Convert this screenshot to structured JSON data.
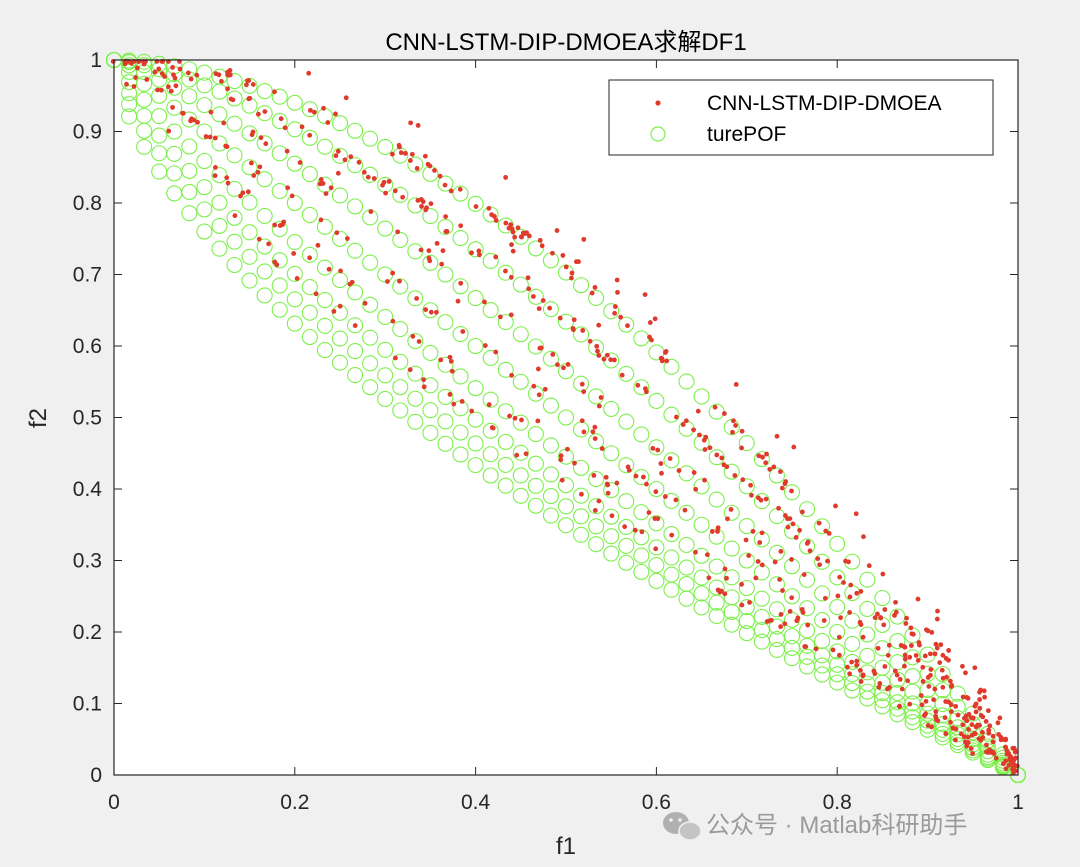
{
  "chart_data": {
    "type": "scatter",
    "title": "CNN-LSTM-DIP-DMOEA求解DF1",
    "xlabel": "f1",
    "ylabel": "f2",
    "xlim": [
      0,
      1
    ],
    "ylim": [
      0,
      1
    ],
    "xticks": [
      "0",
      "0.2",
      "0.4",
      "0.6",
      "0.8",
      "1"
    ],
    "yticks": [
      "0",
      "0.1",
      "0.2",
      "0.3",
      "0.4",
      "0.5",
      "0.6",
      "0.7",
      "0.8",
      "0.9",
      "1"
    ],
    "grid": false,
    "legend_position": "top-right",
    "series": [
      {
        "name": "CNN-LSTM-DIP-DMOEA",
        "marker": "dot",
        "color": "#e03a2c",
        "distribution": "solutions clustered on the true Pareto-front curves f2 = 1 - f1^H, with scatter slightly above the fronts",
        "H_levels": [
          0.75,
          0.85,
          1.0,
          1.2,
          1.45,
          1.75
        ]
      },
      {
        "name": "turePOF",
        "marker": "circle",
        "color": "#7cf04a",
        "curve": "f2 = 1 - f1^H",
        "H_levels": [
          0.62,
          0.68,
          0.75,
          0.85,
          1.0,
          1.2,
          1.45,
          1.75
        ],
        "points_per_curve": 60
      }
    ]
  },
  "watermark": {
    "text": "公众号 · Matlab科研助手",
    "icon": "wechat-icon"
  }
}
